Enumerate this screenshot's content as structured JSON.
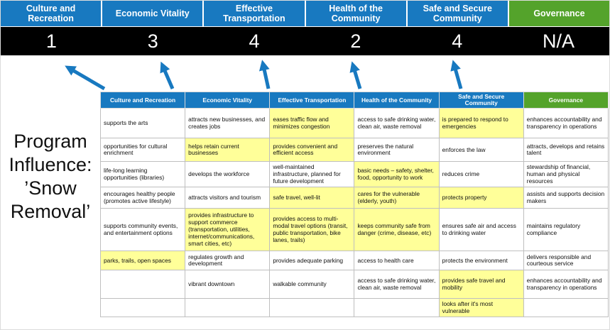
{
  "colors": {
    "pillar_blue": "#1879c0",
    "pillar_green": "#54a32b",
    "score_bg": "#000000",
    "highlight": "#ffff99",
    "arrow_blue": "#1879c0"
  },
  "scoreboard": {
    "pillars": [
      {
        "label": "Culture and Recreation",
        "score": "1"
      },
      {
        "label": "Economic Vitality",
        "score": "3"
      },
      {
        "label": "Effective Transportation",
        "score": "4"
      },
      {
        "label": "Health of the Community",
        "score": "2"
      },
      {
        "label": "Safe and Secure Community",
        "score": "4"
      },
      {
        "label": "Governance",
        "score": "N/A"
      }
    ]
  },
  "program_label": {
    "lines": [
      "Program",
      "Influence:",
      "’Snow",
      "Removal’"
    ]
  },
  "matrix": {
    "headers": [
      "Culture and Recreation",
      "Economic Vitality",
      "Effective Transportation",
      "Health of the Community",
      "Safe and Secure Community",
      "Governance"
    ],
    "rows": [
      [
        {
          "t": "supports the arts",
          "h": false
        },
        {
          "t": "attracts new businesses, and creates jobs",
          "h": false
        },
        {
          "t": "eases traffic flow and minimizes congestion",
          "h": true
        },
        {
          "t": "access to safe drinking water, clean air, waste removal",
          "h": false
        },
        {
          "t": "is prepared to respond to emergencies",
          "h": true
        },
        {
          "t": "enhances accountability and transparency in operations",
          "h": false
        }
      ],
      [
        {
          "t": "opportunities for cultural enrichment",
          "h": false
        },
        {
          "t": "helps retain current businesses",
          "h": true
        },
        {
          "t": "provides convenient and efficient access",
          "h": true
        },
        {
          "t": "preserves the natural environment",
          "h": false
        },
        {
          "t": "enforces the law",
          "h": false
        },
        {
          "t": "attracts, develops and retains talent",
          "h": false
        }
      ],
      [
        {
          "t": "life-long learning opportunities (libraries)",
          "h": false
        },
        {
          "t": "develops the workforce",
          "h": false
        },
        {
          "t": "well-maintained infrastructure, planned for future development",
          "h": false
        },
        {
          "t": "basic needs – safety, shelter, food, opportunity to work",
          "h": true
        },
        {
          "t": "reduces crime",
          "h": false
        },
        {
          "t": "stewardship of financial, human and physical resources",
          "h": false
        }
      ],
      [
        {
          "t": "encourages healthy people (promotes active lifestyle)",
          "h": false
        },
        {
          "t": "attracts visitors and tourism",
          "h": false
        },
        {
          "t": "safe travel, well-lit",
          "h": true
        },
        {
          "t": "cares for the vulnerable (elderly, youth)",
          "h": true
        },
        {
          "t": "protects property",
          "h": true
        },
        {
          "t": "assists and supports decision makers",
          "h": false
        }
      ],
      [
        {
          "t": "supports community events, and entertainment options",
          "h": false
        },
        {
          "t": "provides infrastructure to support commerce (transportation, utilities, internet/communications, smart cities, etc)",
          "h": true
        },
        {
          "t": "provides access to multi-modal travel options (transit, public transportation, bike lanes, trails)",
          "h": true
        },
        {
          "t": "keeps community safe from danger (crime, disease, etc)",
          "h": true
        },
        {
          "t": "ensures safe air and access to drinking water",
          "h": false
        },
        {
          "t": "maintains regulatory compliance",
          "h": false
        }
      ],
      [
        {
          "t": "parks, trails, open spaces",
          "h": true
        },
        {
          "t": "regulates growth and development",
          "h": false
        },
        {
          "t": "provides adequate parking",
          "h": false
        },
        {
          "t": "access to health care",
          "h": false
        },
        {
          "t": "protects the environment",
          "h": false
        },
        {
          "t": "delivers responsible and courteous service",
          "h": false
        }
      ],
      [
        {
          "t": "",
          "h": false
        },
        {
          "t": "vibrant downtown",
          "h": false
        },
        {
          "t": "walkable community",
          "h": false
        },
        {
          "t": "access to safe drinking water, clean air, waste removal",
          "h": false
        },
        {
          "t": "provides safe travel and mobility",
          "h": true
        },
        {
          "t": "enhances accountability and transparency in operations",
          "h": false
        }
      ],
      [
        {
          "t": "",
          "h": false
        },
        {
          "t": "",
          "h": false
        },
        {
          "t": "",
          "h": false
        },
        {
          "t": "",
          "h": false
        },
        {
          "t": "looks after it's most vulnerable",
          "h": true
        },
        {
          "t": "",
          "h": false
        }
      ]
    ]
  }
}
